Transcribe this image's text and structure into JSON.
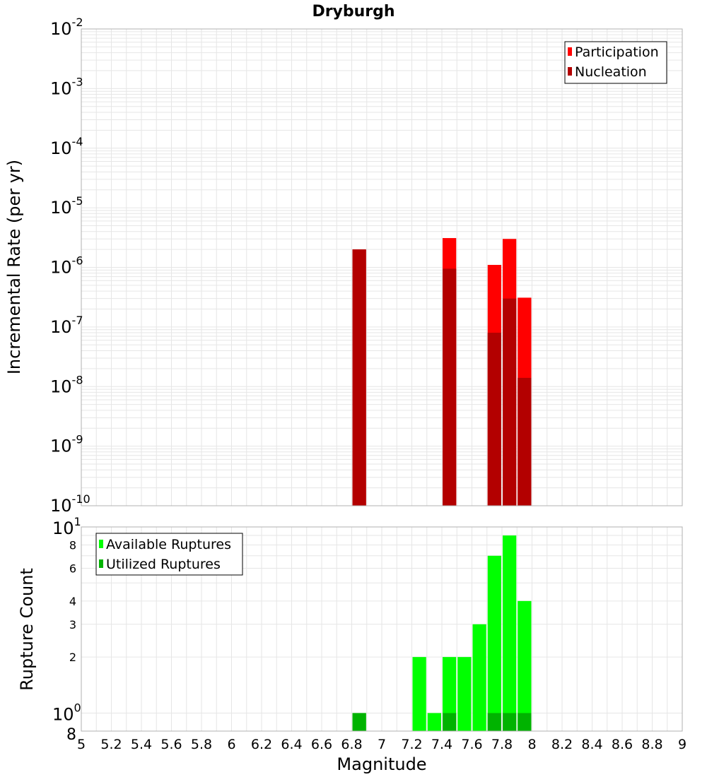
{
  "chart_data": [
    {
      "type": "bar",
      "title": "Dryburgh",
      "ylabel": "Incremental Rate (per yr)",
      "xlabel": "",
      "xlim": [
        5,
        9
      ],
      "ylim": [
        1e-10,
        0.01
      ],
      "yscale": "log",
      "bar_width": 0.1,
      "y_ticks": [
        {
          "base": "10",
          "exp": "-10"
        },
        {
          "base": "10",
          "exp": "-9"
        },
        {
          "base": "10",
          "exp": "-8"
        },
        {
          "base": "10",
          "exp": "-7"
        },
        {
          "base": "10",
          "exp": "-6"
        },
        {
          "base": "10",
          "exp": "-5"
        },
        {
          "base": "10",
          "exp": "-4"
        },
        {
          "base": "10",
          "exp": "-3"
        },
        {
          "base": "10",
          "exp": "-2"
        }
      ],
      "grid": true,
      "legend": "top-right",
      "series": [
        {
          "name": "Participation",
          "color": "#ff0000",
          "x": [
            6.85,
            7.45,
            7.75,
            7.85,
            7.95
          ],
          "values": [
            2e-06,
            3.1e-06,
            1.1e-06,
            3e-06,
            3.1e-07
          ]
        },
        {
          "name": "Nucleation",
          "color": "#b30000",
          "x": [
            6.85,
            7.45,
            7.75,
            7.85,
            7.95
          ],
          "values": [
            2e-06,
            9.5e-07,
            8e-08,
            3e-07,
            1.4e-08
          ]
        }
      ]
    },
    {
      "type": "bar",
      "title": "",
      "ylabel": "Rupture Count",
      "xlabel": "Magnitude",
      "xlim": [
        5,
        9
      ],
      "ylim": [
        0.8,
        10
      ],
      "yscale": "log",
      "bar_width": 0.1,
      "x_ticks": [
        "5",
        "5.2",
        "5.4",
        "5.6",
        "5.8",
        "6",
        "6.2",
        "6.4",
        "6.6",
        "6.8",
        "7",
        "7.2",
        "7.4",
        "7.6",
        "7.8",
        "8",
        "8.2",
        "8.4",
        "8.6",
        "8.8",
        "9"
      ],
      "y_minor_ticks": [
        "2",
        "3",
        "4",
        "6",
        "8"
      ],
      "y_major_ticks": [
        {
          "base": "10",
          "exp": "0"
        },
        {
          "base": "10",
          "exp": "1"
        }
      ],
      "y_bottom_label": "8",
      "grid": true,
      "legend": "top-left",
      "series": [
        {
          "name": "Available Ruptures",
          "color": "#00ff00",
          "x": [
            6.85,
            7.25,
            7.35,
            7.45,
            7.55,
            7.65,
            7.75,
            7.85,
            7.95
          ],
          "values": [
            1,
            2,
            1,
            2,
            2,
            3,
            7,
            9,
            4
          ]
        },
        {
          "name": "Utilized Ruptures",
          "color": "#00b300",
          "x": [
            6.85,
            7.45,
            7.75,
            7.85,
            7.95
          ],
          "values": [
            1,
            1,
            1,
            1,
            1
          ]
        }
      ]
    }
  ]
}
